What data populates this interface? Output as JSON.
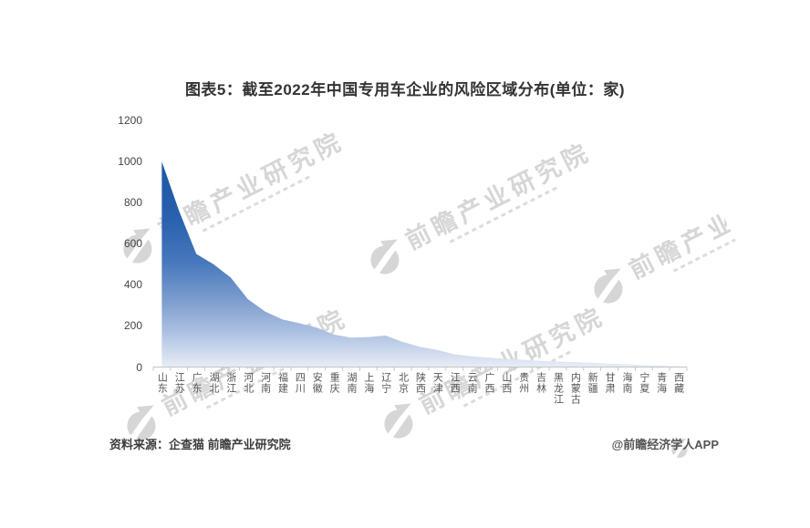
{
  "title": "图表5：截至2022年中国专用车企业的风险区域分布(单位：家)",
  "source_note": "资料来源：企查猫 前瞻产业研究院",
  "credit": "@前瞻经济学人APP",
  "watermark": {
    "text": "前瞻产业研究院",
    "logo": "qianzhan-logo-icon"
  },
  "chart_data": {
    "type": "area",
    "title": "图表5：截至2022年中国专用车企业的风险区域分布(单位：家)",
    "unit": "家",
    "categories": [
      "山东",
      "江苏",
      "广东",
      "湖北",
      "浙江",
      "河北",
      "河南",
      "福建",
      "四川",
      "安徽",
      "重庆",
      "湖南",
      "上海",
      "辽宁",
      "北京",
      "陕西",
      "天津",
      "江西",
      "云南",
      "广西",
      "山西",
      "贵州",
      "吉林",
      "黑龙江",
      "内蒙古",
      "新疆",
      "甘肃",
      "海南",
      "宁夏",
      "青海",
      "西藏"
    ],
    "values": [
      1000,
      760,
      550,
      500,
      435,
      330,
      270,
      232,
      213,
      192,
      158,
      143,
      146,
      153,
      122,
      98,
      83,
      62,
      52,
      46,
      40,
      35,
      30,
      27,
      24,
      21,
      17,
      14,
      10,
      7,
      4
    ],
    "xlabel": "",
    "ylabel": "",
    "ylim": [
      0,
      1200
    ],
    "yticks": [
      0,
      200,
      400,
      600,
      800,
      1000,
      1200
    ],
    "grid": false,
    "legend": false,
    "area_color_dark": "#1A55A6",
    "area_gradient": [
      "#1A55A6",
      "#2A61AE",
      "#4678BC",
      "#7C9CCD",
      "#AEC2E2",
      "#E8EDF7"
    ],
    "axis_color": "#c4c4c4"
  }
}
